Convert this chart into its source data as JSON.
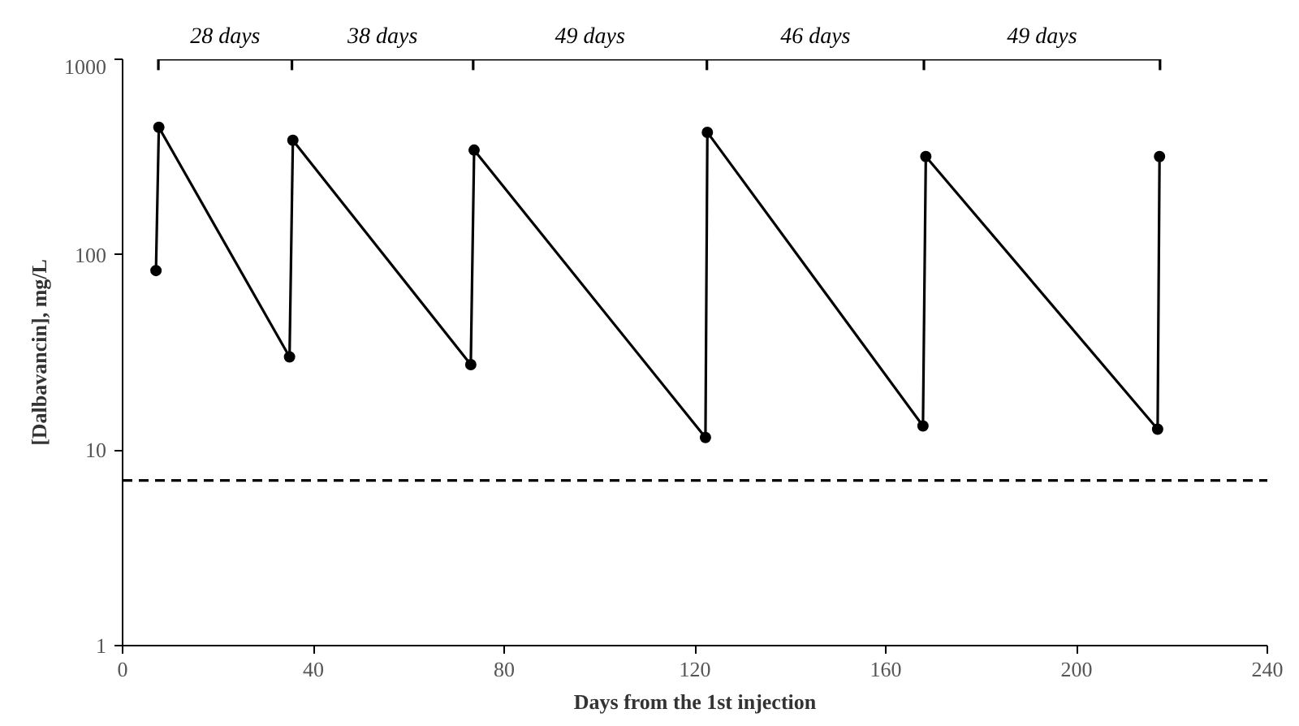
{
  "chart_data": {
    "type": "line",
    "xlabel": "Days from the 1st injection",
    "ylabel": "[Dalbavancin], mg/L",
    "x": [
      7.0,
      7.6,
      35.0,
      35.7,
      73.0,
      73.7,
      122.2,
      122.6,
      167.8,
      168.4,
      217.0,
      217.4
    ],
    "series": [
      {
        "color": "#000000",
        "marker": "circle",
        "values": [
          83,
          449,
          30,
          385,
          27.4,
          343,
          11.6,
          423,
          13.3,
          318,
          12.8,
          318
        ]
      },
      {
        "type": "step",
        "color": "#000000",
        "marker": "none",
        "x": [
          7.5,
          35.5,
          73.5,
          122.5,
          168,
          217.5
        ],
        "values": [
          1000,
          1000,
          1000,
          1000,
          1000,
          1000
        ],
        "errors": [
          [
            880,
            1000
          ],
          [
            880,
            1000
          ],
          [
            880,
            1000
          ],
          [
            880,
            1000
          ],
          [
            880,
            1000
          ],
          [
            880,
            1000
          ]
        ]
      }
    ],
    "annotations": [
      {
        "text": "28 days",
        "x": 21.5,
        "y": 1000
      },
      {
        "text": "38 days",
        "x": 54.5,
        "y": 1000
      },
      {
        "text": "49 days",
        "x": 98,
        "y": 1000
      },
      {
        "text": "46 days",
        "x": 145.25,
        "y": 1000
      },
      {
        "text": "49 days",
        "x": 192.75,
        "y": 1000
      }
    ],
    "ref_lines": [
      {
        "axis": "y",
        "value": 7,
        "line_style": "dashed",
        "color": "#000000"
      }
    ],
    "log": "y",
    "xlim": [
      0,
      240
    ],
    "ylim": [
      1,
      1000
    ],
    "xticks": [
      0,
      40,
      80,
      120,
      160,
      200,
      240
    ],
    "yticks": [
      1,
      10,
      100,
      1000
    ],
    "grid": false,
    "line_style": "solid"
  }
}
